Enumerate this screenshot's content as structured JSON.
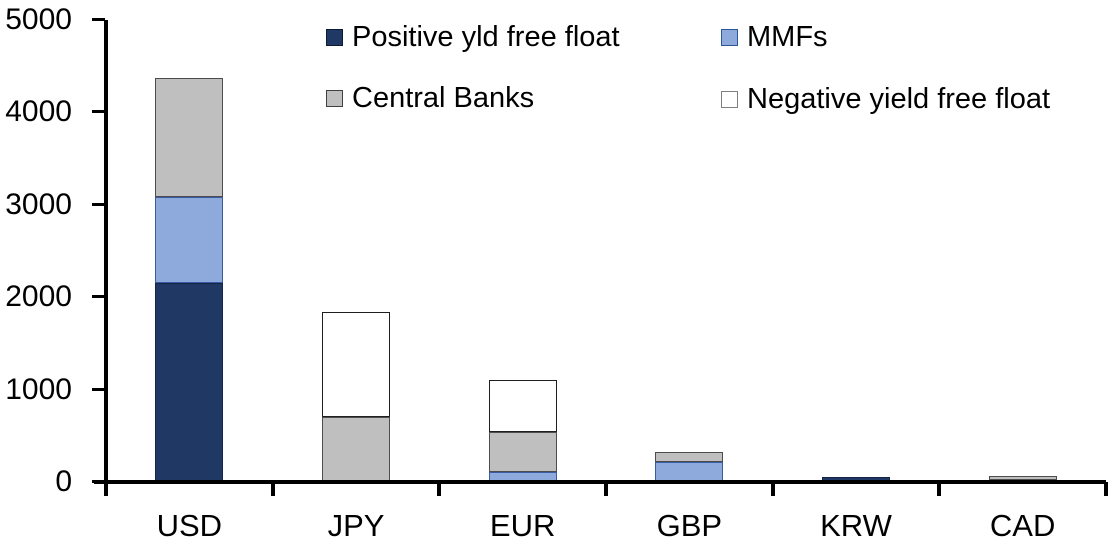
{
  "chart_data": {
    "type": "bar",
    "stacked": true,
    "title": "",
    "xlabel": "",
    "ylabel": "",
    "categories": [
      "USD",
      "JPY",
      "EUR",
      "GBP",
      "KRW",
      "CAD"
    ],
    "series": [
      {
        "name": "Positive yld free float",
        "color": "#1F3864",
        "segment_border": "#15254A",
        "legend_border": "#0D1A33",
        "values": [
          2150,
          0,
          0,
          0,
          50,
          20
        ]
      },
      {
        "name": "MMFs",
        "color": "#8EA9DB",
        "segment_border": "#3A5CA0",
        "legend_border": "#2E5597",
        "values": [
          930,
          0,
          110,
          220,
          0,
          0
        ]
      },
      {
        "name": "Central Banks",
        "color": "#BFBFBF",
        "segment_border": "#4D4D4D",
        "legend_border": "#404040",
        "values": [
          1290,
          700,
          430,
          110,
          0,
          40
        ]
      },
      {
        "name": "Negative yield free float",
        "color": "#FFFFFF",
        "segment_border": "#1F1F1F",
        "legend_border": "#7F7F7F",
        "values": [
          0,
          1140,
          560,
          0,
          0,
          0
        ]
      }
    ],
    "totals": [
      4370,
      1840,
      1100,
      330,
      50,
      60
    ],
    "ylim": [
      0,
      5000
    ],
    "yticks": [
      0,
      1000,
      2000,
      3000,
      4000,
      5000
    ],
    "grid": false,
    "legend_position": "top",
    "axis_color": "#000000",
    "background_color": "#FFFFFF"
  }
}
